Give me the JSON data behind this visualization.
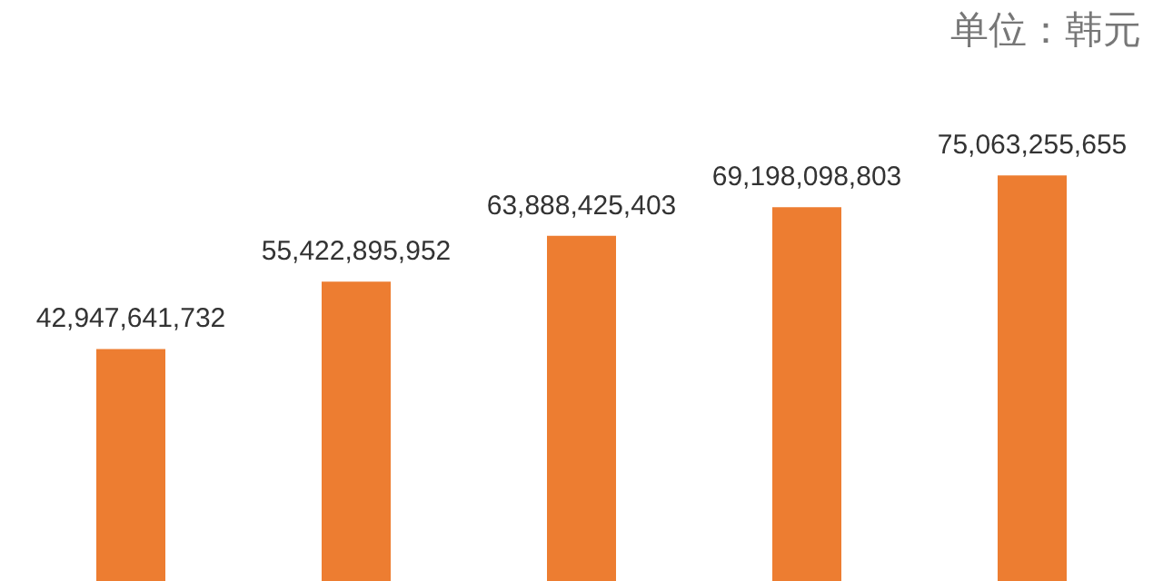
{
  "chart_data": {
    "type": "bar",
    "categories": [
      null,
      null,
      null,
      null,
      null
    ],
    "values": [
      42947641732,
      55422895952,
      63888425403,
      69198098803,
      75063255655
    ],
    "value_labels": [
      "42,947,641,732",
      "55,422,895,952",
      "63,888,425,403",
      "69,198,098,803",
      "75,063,255,655"
    ],
    "color": "#ed7d31",
    "annotations": [
      "单位：韩元"
    ]
  }
}
